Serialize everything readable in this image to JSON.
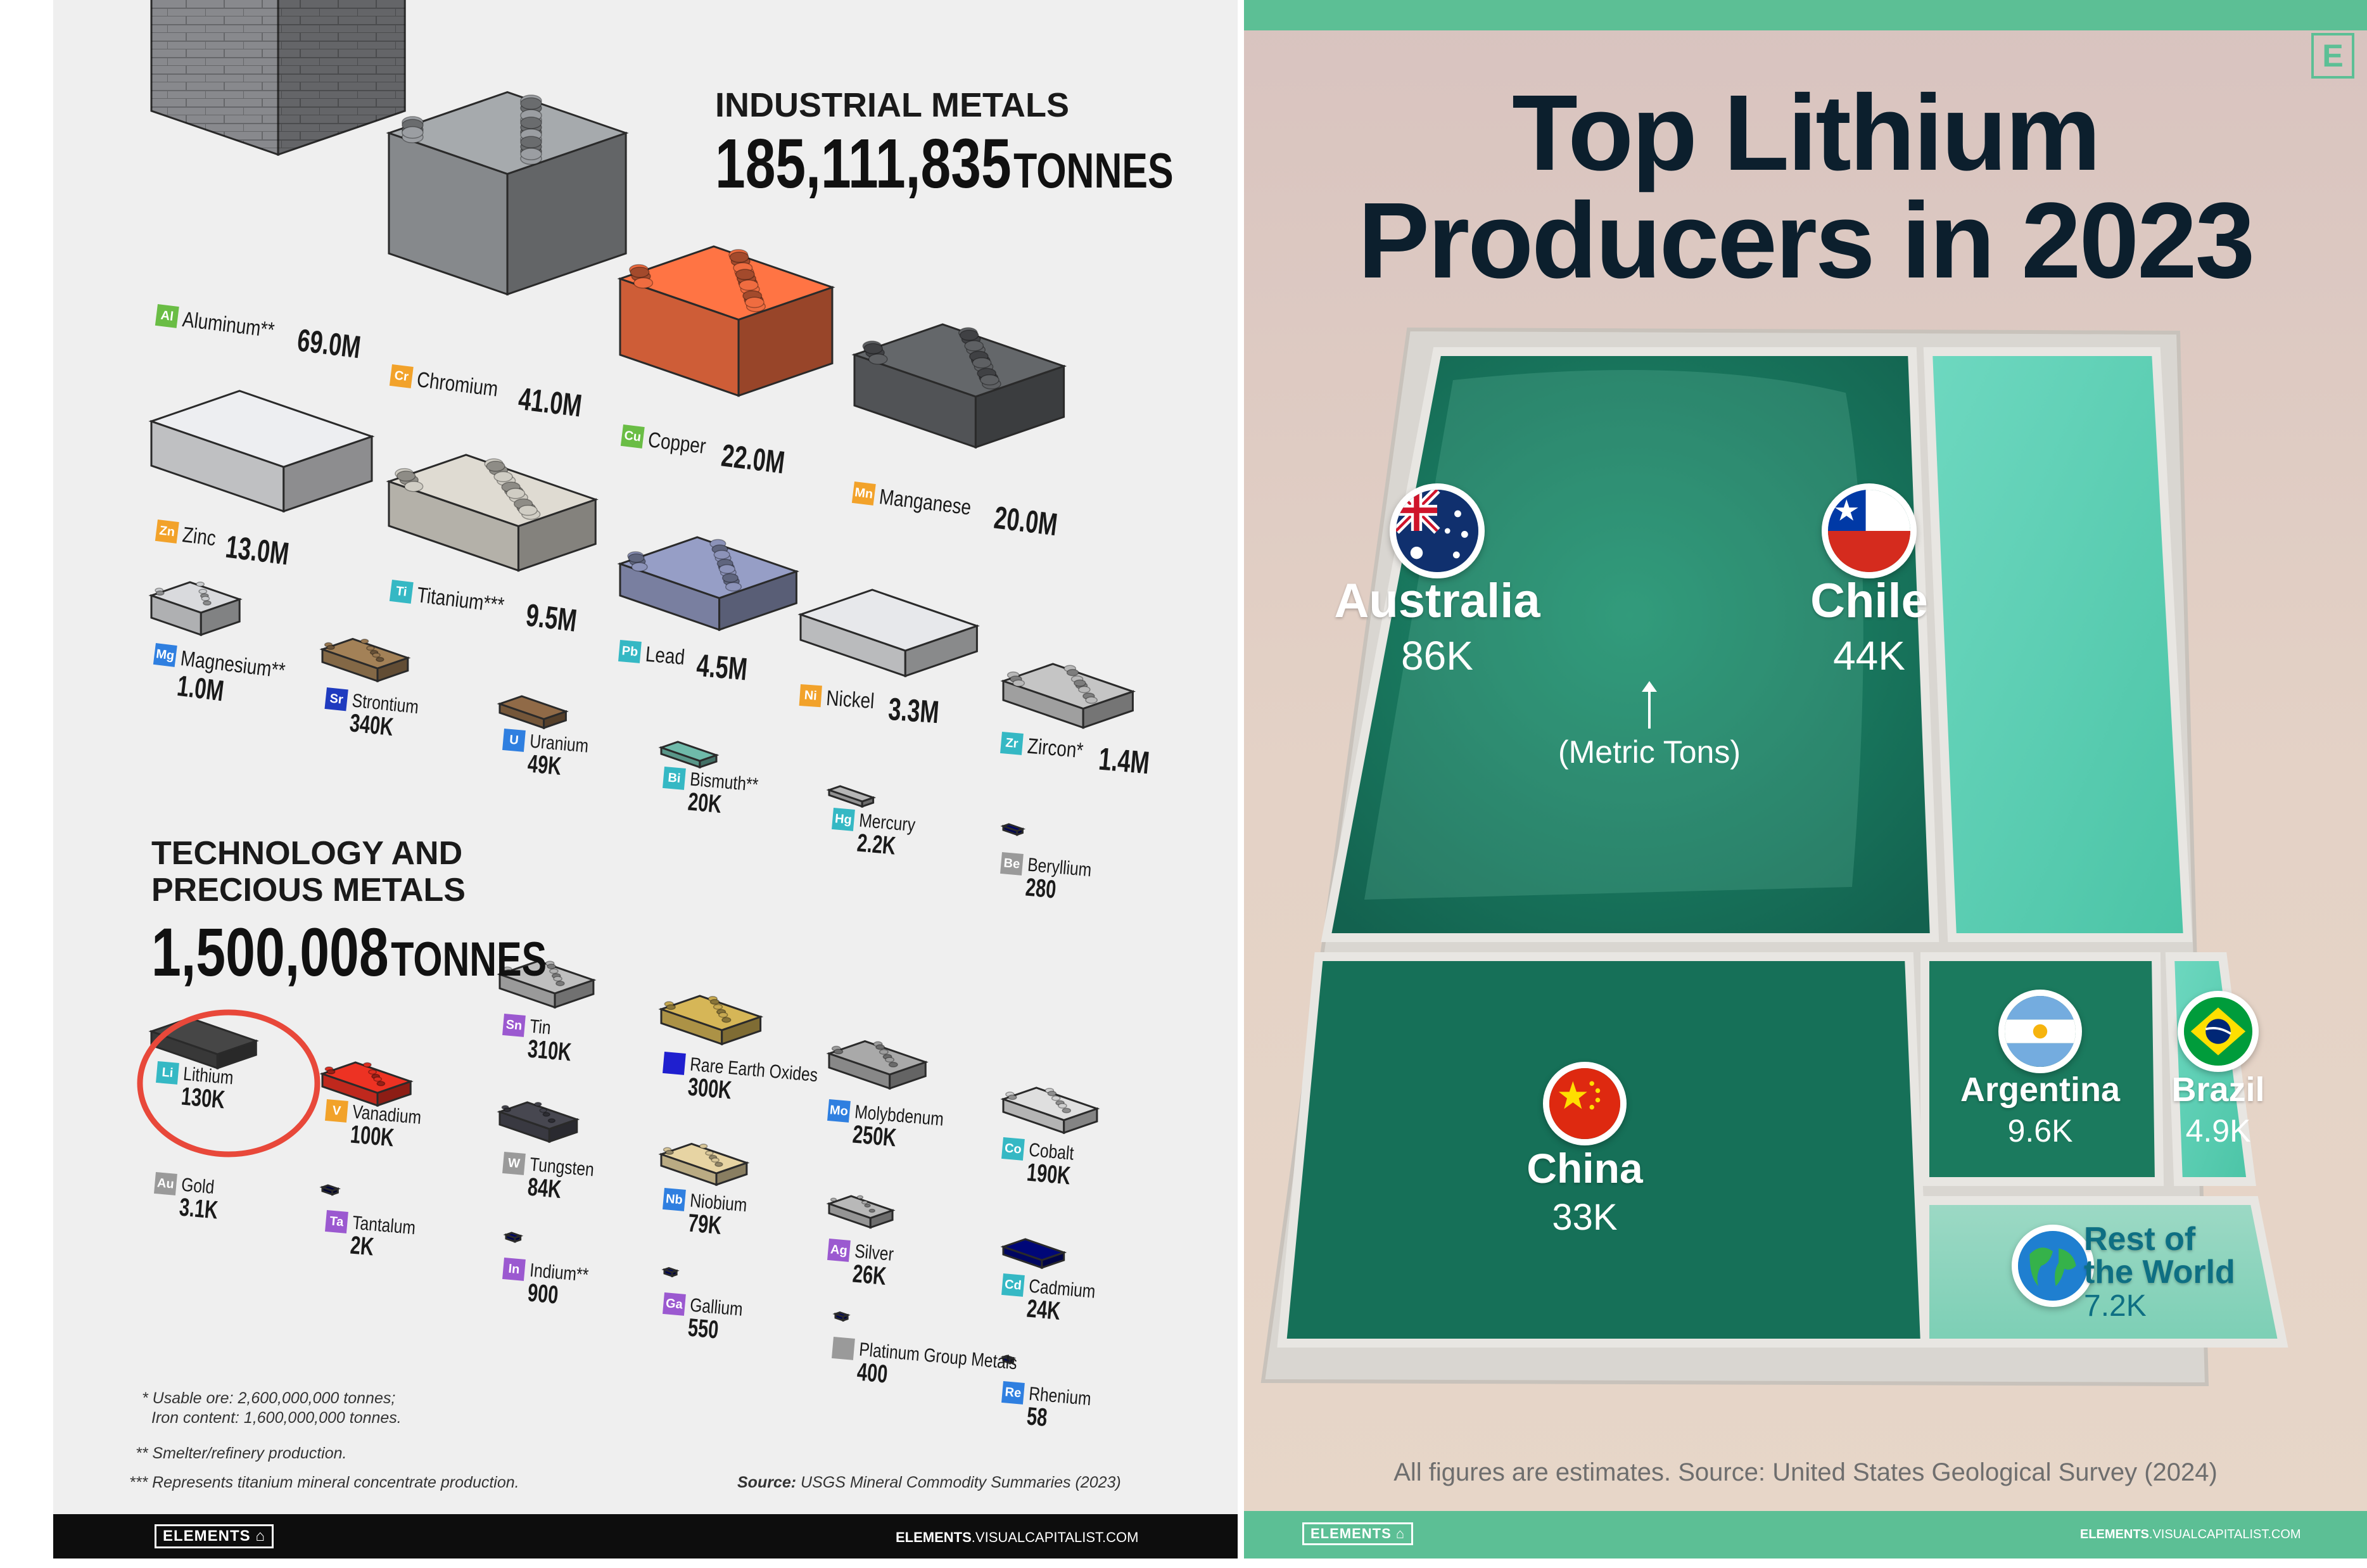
{
  "chart_data": [
    {
      "type": "table",
      "sections": [
        {
          "title_line1": "INDUSTRIAL METALS",
          "total_value": "185,111,835",
          "total_unit": "TONNES",
          "metals": [
            {
              "symbol": "Al",
              "name": "Aluminum**",
              "value": "69.0M",
              "tonnes": 69000000,
              "color": "#6abd45"
            },
            {
              "symbol": "Cr",
              "name": "Chromium",
              "value": "41.0M",
              "tonnes": 41000000,
              "color": "#f2a22a"
            },
            {
              "symbol": "Cu",
              "name": "Copper",
              "value": "22.0M",
              "tonnes": 22000000,
              "color": "#6abd45"
            },
            {
              "symbol": "Mn",
              "name": "Manganese",
              "value": "20.0M",
              "tonnes": 20000000,
              "color": "#f2a22a"
            },
            {
              "symbol": "Zn",
              "name": "Zinc",
              "value": "13.0M",
              "tonnes": 13000000,
              "color": "#f2a22a"
            },
            {
              "symbol": "Ti",
              "name": "Titanium***",
              "value": "9.5M",
              "tonnes": 9500000,
              "color": "#35b8c4"
            },
            {
              "symbol": "Mg",
              "name": "Magnesium**",
              "value": "1.0M",
              "tonnes": 1000000,
              "color": "#2f7fe0"
            },
            {
              "symbol": "Pb",
              "name": "Lead",
              "value": "4.5M",
              "tonnes": 4500000,
              "color": "#35b8c4"
            },
            {
              "symbol": "Ni",
              "name": "Nickel",
              "value": "3.3M",
              "tonnes": 3300000,
              "color": "#f2a22a"
            },
            {
              "symbol": "Zr",
              "name": "Zircon*",
              "value": "1.4M",
              "tonnes": 1400000,
              "color": "#35b8c4"
            },
            {
              "symbol": "Sr",
              "name": "Strontium",
              "value": "340K",
              "tonnes": 340000,
              "color": "#1f3bbf"
            },
            {
              "symbol": "U",
              "name": "Uranium",
              "value": "49K",
              "tonnes": 49000,
              "color": "#2f7fe0"
            },
            {
              "symbol": "Bi",
              "name": "Bismuth**",
              "value": "20K",
              "tonnes": 20000,
              "color": "#35b8c4"
            },
            {
              "symbol": "Hg",
              "name": "Mercury",
              "value": "2.2K",
              "tonnes": 2200,
              "color": "#35b8c4"
            },
            {
              "symbol": "Be",
              "name": "Beryllium",
              "value": "280",
              "tonnes": 280,
              "color": "#9a9a9a"
            }
          ]
        },
        {
          "title_line1": "TECHNOLOGY AND",
          "title_line2": "PRECIOUS METALS",
          "total_value": "1,500,008",
          "total_unit": "TONNES",
          "metals": [
            {
              "symbol": "Li",
              "name": "Lithium",
              "value": "130K",
              "tonnes": 130000,
              "color": "#35b8c4",
              "highlighted": true
            },
            {
              "symbol": "Au",
              "name": "Gold",
              "value": "3.1K",
              "tonnes": 3100,
              "color": "#9a9a9a"
            },
            {
              "symbol": "V",
              "name": "Vanadium",
              "value": "100K",
              "tonnes": 100000,
              "color": "#f2a22a"
            },
            {
              "symbol": "Ta",
              "name": "Tantalum",
              "value": "2K",
              "tonnes": 2000,
              "color": "#9b59d0"
            },
            {
              "symbol": "Sn",
              "name": "Tin",
              "value": "310K",
              "tonnes": 310000,
              "color": "#9b59d0"
            },
            {
              "symbol": "W",
              "name": "Tungsten",
              "value": "84K",
              "tonnes": 84000,
              "color": "#9a9a9a"
            },
            {
              "symbol": "In",
              "name": "Indium**",
              "value": "900",
              "tonnes": 900,
              "color": "#9b59d0"
            },
            {
              "symbol": "",
              "name": "Rare Earth Oxides",
              "value": "300K",
              "tonnes": 300000,
              "color": "#1f1fcf"
            },
            {
              "symbol": "Nb",
              "name": "Niobium",
              "value": "79K",
              "tonnes": 79000,
              "color": "#2f7fe0"
            },
            {
              "symbol": "Ga",
              "name": "Gallium",
              "value": "550",
              "tonnes": 550,
              "color": "#9b59d0"
            },
            {
              "symbol": "Mo",
              "name": "Molybdenum",
              "value": "250K",
              "tonnes": 250000,
              "color": "#2f7fe0"
            },
            {
              "symbol": "Ag",
              "name": "Silver",
              "value": "26K",
              "tonnes": 26000,
              "color": "#9b59d0"
            },
            {
              "symbol": "",
              "name": "Platinum Group Metals",
              "value": "400",
              "tonnes": 400,
              "color": "#9a9a9a"
            },
            {
              "symbol": "Co",
              "name": "Cobalt",
              "value": "190K",
              "tonnes": 190000,
              "color": "#35b8c4"
            },
            {
              "symbol": "Cd",
              "name": "Cadmium",
              "value": "24K",
              "tonnes": 24000,
              "color": "#35b8c4"
            },
            {
              "symbol": "Re",
              "name": "Rhenium",
              "value": "58",
              "tonnes": 58,
              "color": "#2f7fe0"
            }
          ]
        }
      ],
      "footnotes": [
        "* Usable ore: 2,600,000,000 tonnes;",
        "Iron content: 1,600,000,000 tonnes.",
        "** Smelter/refinery production.",
        "*** Represents titanium mineral concentrate production."
      ],
      "source_label": "Source:",
      "source_text": "USGS Mineral Commodity Summaries (2023)"
    },
    {
      "type": "treemap",
      "title_line1": "Top Lithium",
      "title_line2": "Producers in 2023",
      "unit_note": "(Metric Tons)",
      "series": [
        {
          "name": "Australia",
          "value": 86000,
          "label": "86K",
          "flag": "australia-flag"
        },
        {
          "name": "Chile",
          "value": 44000,
          "label": "44K",
          "flag": "chile-flag"
        },
        {
          "name": "China",
          "value": 33000,
          "label": "33K",
          "flag": "china-flag"
        },
        {
          "name": "Argentina",
          "value": 9600,
          "label": "9.6K",
          "flag": "argentina-flag"
        },
        {
          "name": "Brazil",
          "value": 4900,
          "label": "4.9K",
          "flag": "brazil-flag"
        },
        {
          "name": "Rest of the World",
          "name_line1": "Rest of",
          "name_line2": "the World",
          "value": 7200,
          "label": "7.2K",
          "flag": "globe-icon"
        }
      ],
      "source_text": "All figures are estimates. Source: United States Geological Survey (2024)"
    }
  ],
  "branding": {
    "logo_text": "ELEMENTS",
    "site_bold": "ELEMENTS",
    "site_rest": ".VISUALCAPITALIST.COM",
    "corner_logo": "E"
  },
  "colors": {
    "accent_green": "#5cbf95",
    "title_navy": "#0c1f2d",
    "highlight_red": "#e8483a"
  }
}
